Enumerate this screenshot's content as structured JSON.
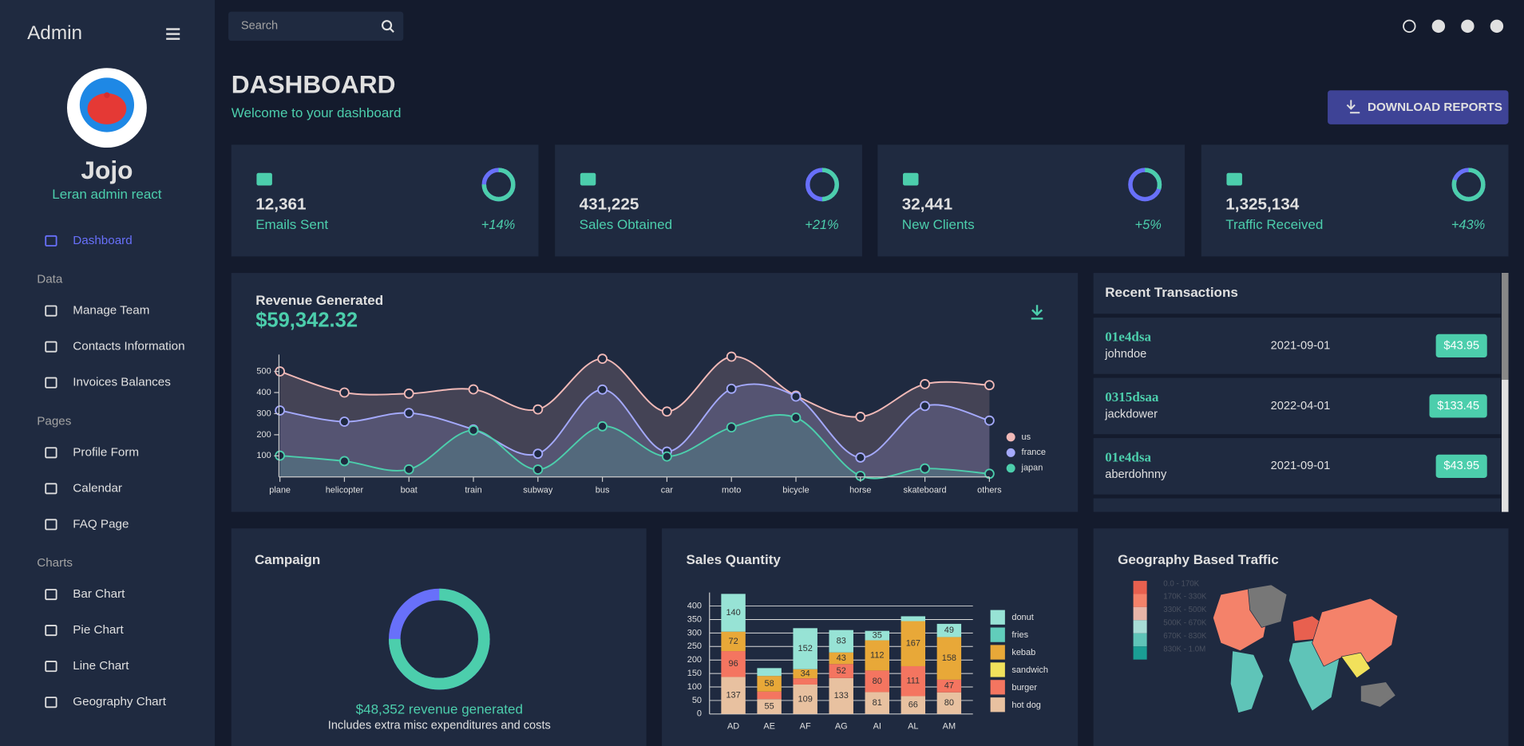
{
  "sidebar": {
    "brand": "Admin",
    "user": {
      "name": "Jojo",
      "role": "Leran admin react"
    },
    "nav": {
      "top": [
        "Dashboard"
      ],
      "groups": [
        {
          "title": "Data",
          "items": [
            "Manage Team",
            "Contacts Information",
            "Invoices Balances"
          ]
        },
        {
          "title": "Pages",
          "items": [
            "Profile Form",
            "Calendar",
            "FAQ Page"
          ]
        },
        {
          "title": "Charts",
          "items": [
            "Bar Chart",
            "Pie Chart",
            "Line Chart",
            "Geography Chart"
          ]
        }
      ]
    }
  },
  "topbar": {
    "search_placeholder": "Search"
  },
  "header": {
    "title": "DASHBOARD",
    "subtitle": "Welcome to your dashboard",
    "button": "DOWNLOAD REPORTS"
  },
  "stats": [
    {
      "value": "12,361",
      "label": "Emails Sent",
      "increase": "+14%",
      "progress": 0.75
    },
    {
      "value": "431,225",
      "label": "Sales Obtained",
      "increase": "+21%",
      "progress": 0.5
    },
    {
      "value": "32,441",
      "label": "New Clients",
      "increase": "+5%",
      "progress": 0.3
    },
    {
      "value": "1,325,134",
      "label": "Traffic Received",
      "increase": "+43%",
      "progress": 0.8
    }
  ],
  "transactions": {
    "title": "Recent Transactions",
    "rows": [
      {
        "txId": "01e4dsa",
        "user": "johndoe",
        "date": "2021-09-01",
        "cost": "$43.95"
      },
      {
        "txId": "0315dsaa",
        "user": "jackdower",
        "date": "2022-04-01",
        "cost": "$133.45"
      },
      {
        "txId": "01e4dsa",
        "user": "aberdohnny",
        "date": "2021-09-01",
        "cost": "$43.95"
      }
    ]
  },
  "campaign": {
    "title": "Campaign",
    "progress": 0.75,
    "revenue": "$48,352 revenue generated",
    "note": "Includes extra misc expenditures and costs"
  },
  "chart_data": [
    {
      "type": "line",
      "title": "Revenue Generated",
      "subtitle": "$59,342.32",
      "legend": "right",
      "categories": [
        "plane",
        "helicopter",
        "boat",
        "train",
        "subway",
        "bus",
        "car",
        "moto",
        "bicycle",
        "horse",
        "skateboard",
        "others"
      ],
      "series": [
        {
          "name": "us",
          "color": "#f1b9b7",
          "values": [
            500,
            400,
            395,
            415,
            320,
            560,
            310,
            570,
            385,
            285,
            440,
            435
          ]
        },
        {
          "name": "france",
          "color": "#a4a9fc",
          "values": [
            315,
            262,
            303,
            225,
            110,
            414,
            120,
            418,
            381,
            92,
            336,
            267
          ]
        },
        {
          "name": "japan",
          "color": "#4cceac",
          "values": [
            101,
            75,
            36,
            221,
            35,
            240,
            97,
            235,
            281,
            5,
            40,
            15
          ]
        }
      ],
      "ylim": [
        0,
        580
      ],
      "yticks": [
        100,
        200,
        300,
        400,
        500
      ]
    },
    {
      "type": "bar",
      "stacked": true,
      "title": "Sales Quantity",
      "legend": "right",
      "categories": [
        "AD",
        "AE",
        "AF",
        "AG",
        "AI",
        "AL",
        "AM"
      ],
      "series": [
        {
          "name": "hot dog",
          "color": "#e8c1a0",
          "values": [
            137,
            55,
            109,
            133,
            81,
            66,
            80
          ]
        },
        {
          "name": "burger",
          "color": "#f47560",
          "values": [
            96,
            28,
            23,
            52,
            80,
            111,
            47
          ]
        },
        {
          "name": "sandwich",
          "color": "#f1e15b",
          "values": [
            null,
            null,
            null,
            null,
            null,
            null,
            null
          ]
        },
        {
          "name": "kebab",
          "color": "#e8a838",
          "values": [
            72,
            58,
            34,
            43,
            112,
            167,
            158
          ]
        },
        {
          "name": "fries",
          "color": "#61cdbb",
          "values": [
            null,
            null,
            null,
            null,
            null,
            null,
            null
          ]
        },
        {
          "name": "donut",
          "color": "#97e3d5",
          "values": [
            140,
            29,
            152,
            83,
            35,
            18,
            49
          ]
        }
      ],
      "ylim": [
        0,
        450
      ],
      "yticks": [
        0,
        50,
        100,
        150,
        200,
        250,
        300,
        350,
        400
      ],
      "grid": true
    },
    {
      "type": "choropleth",
      "title": "Geography Based Traffic",
      "legend_labels": [
        "0.0 - 170K",
        "170K - 330K",
        "330K - 500K",
        "500K - 670K",
        "670K - 830K",
        "830K - 1.0M"
      ],
      "colors": [
        "#e8604f",
        "#f4826a",
        "#e8b5a8",
        "#a8ddd6",
        "#5fc4b8",
        "#1a9e94"
      ]
    }
  ]
}
